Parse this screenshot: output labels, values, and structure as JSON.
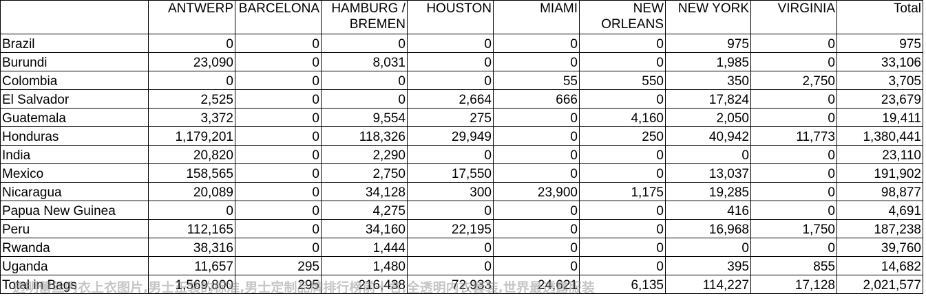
{
  "headers": [
    "",
    "ANTWERP",
    "BARCELONA",
    "HAMBURG / BREMEN",
    "HOUSTON",
    "MIAMI",
    "NEW ORLEANS",
    "NEW YORK",
    "VIRGINIA",
    "Total"
  ],
  "rows": [
    {
      "label": "Brazil",
      "values": [
        "0",
        "0",
        "0",
        "0",
        "0",
        "0",
        "975",
        "0",
        "975"
      ]
    },
    {
      "label": "Burundi",
      "values": [
        "23,090",
        "0",
        "8,031",
        "0",
        "0",
        "0",
        "1,985",
        "0",
        "33,106"
      ]
    },
    {
      "label": "Colombia",
      "values": [
        "0",
        "0",
        "0",
        "0",
        "55",
        "550",
        "350",
        "2,750",
        "3,705"
      ]
    },
    {
      "label": "El Salvador",
      "values": [
        "2,525",
        "0",
        "0",
        "2,664",
        "666",
        "0",
        "17,824",
        "0",
        "23,679"
      ]
    },
    {
      "label": "Guatemala",
      "values": [
        "3,372",
        "0",
        "9,554",
        "275",
        "0",
        "4,160",
        "2,050",
        "0",
        "19,411"
      ]
    },
    {
      "label": "Honduras",
      "values": [
        "1,179,201",
        "0",
        "118,326",
        "29,949",
        "0",
        "250",
        "40,942",
        "11,773",
        "1,380,441"
      ]
    },
    {
      "label": "India",
      "values": [
        "20,820",
        "0",
        "2,290",
        "0",
        "0",
        "0",
        "0",
        "0",
        "23,110"
      ]
    },
    {
      "label": "Mexico",
      "values": [
        "158,565",
        "0",
        "2,750",
        "17,550",
        "0",
        "0",
        "13,037",
        "0",
        "191,902"
      ]
    },
    {
      "label": "Nicaragua",
      "values": [
        "20,089",
        "0",
        "34,128",
        "300",
        "23,900",
        "1,175",
        "19,285",
        "0",
        "98,877"
      ]
    },
    {
      "label": "Papua New Guinea",
      "values": [
        "0",
        "0",
        "4,275",
        "0",
        "0",
        "0",
        "416",
        "0",
        "4,691"
      ]
    },
    {
      "label": "Peru",
      "values": [
        "112,165",
        "0",
        "34,160",
        "22,195",
        "0",
        "0",
        "16,968",
        "1,750",
        "187,238"
      ]
    },
    {
      "label": "Rwanda",
      "values": [
        "38,316",
        "0",
        "1,444",
        "0",
        "0",
        "0",
        "0",
        "0",
        "39,760"
      ]
    },
    {
      "label": "Uganda",
      "values": [
        "11,657",
        "295",
        "1,480",
        "0",
        "0",
        "0",
        "395",
        "855",
        "14,682"
      ]
    },
    {
      "label": "Total in Bags",
      "values": [
        "1,569,800",
        "295",
        "216,438",
        "72,933",
        "24,621",
        "6,135",
        "114,227",
        "17,128",
        "2,021,577"
      ]
    }
  ],
  "watermark": "透明蕾丝内衣上衣图片,男士正装的标准,男士定制品牌排行榜前十名,全透明内衣套装,世界最透露服装"
}
